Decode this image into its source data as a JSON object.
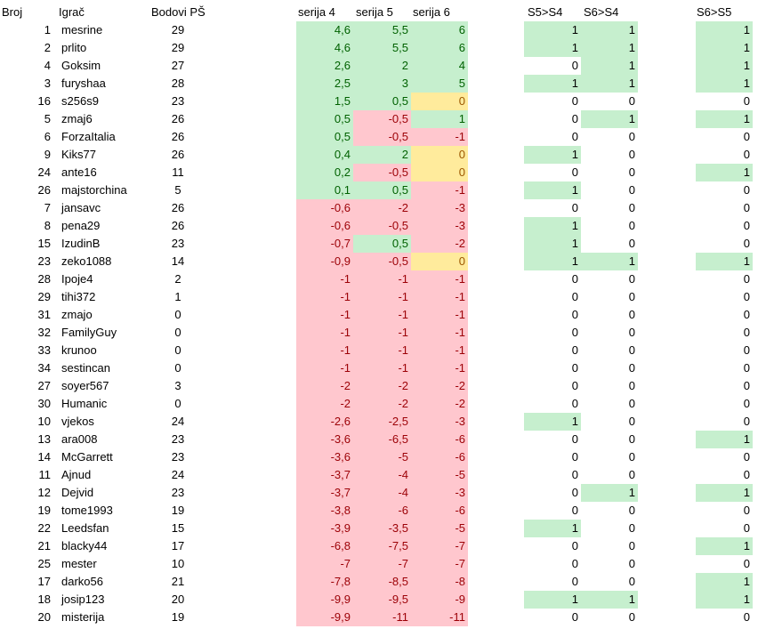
{
  "header": [
    "Broj",
    "Igrač",
    "Bodovi PŠ",
    "serija 4",
    "serija 5",
    "serija 6",
    "S5>S4",
    "S6>S4",
    "S6>S5"
  ],
  "rows": [
    [
      "1",
      "mesrine",
      "29",
      "4,6",
      "5,5",
      "6",
      "1",
      "1",
      "1"
    ],
    [
      "2",
      "prlito",
      "29",
      "4,6",
      "5,5",
      "6",
      "1",
      "1",
      "1"
    ],
    [
      "4",
      "Goksim",
      "27",
      "2,6",
      "2",
      "4",
      "0",
      "1",
      "1"
    ],
    [
      "3",
      "furyshaa",
      "28",
      "2,5",
      "3",
      "5",
      "1",
      "1",
      "1"
    ],
    [
      "16",
      "s256s9",
      "23",
      "1,5",
      "0,5",
      "0",
      "0",
      "0",
      "0"
    ],
    [
      "5",
      "zmaj6",
      "26",
      "0,5",
      "-0,5",
      "1",
      "0",
      "1",
      "1"
    ],
    [
      "6",
      "ForzaItalia",
      "26",
      "0,5",
      "-0,5",
      "-1",
      "0",
      "0",
      "0"
    ],
    [
      "9",
      "Kiks77",
      "26",
      "0,4",
      "2",
      "0",
      "1",
      "0",
      "0"
    ],
    [
      "24",
      "ante16",
      "11",
      "0,2",
      "-0,5",
      "0",
      "0",
      "0",
      "1"
    ],
    [
      "26",
      "majstorchina",
      "5",
      "0,1",
      "0,5",
      "-1",
      "1",
      "0",
      "0"
    ],
    [
      "7",
      "jansavc",
      "26",
      "-0,6",
      "-2",
      "-3",
      "0",
      "0",
      "0"
    ],
    [
      "8",
      "pena29",
      "26",
      "-0,6",
      "-0,5",
      "-3",
      "1",
      "0",
      "0"
    ],
    [
      "15",
      "IzudinB",
      "23",
      "-0,7",
      "0,5",
      "-2",
      "1",
      "0",
      "0"
    ],
    [
      "23",
      "zeko1088",
      "14",
      "-0,9",
      "-0,5",
      "0",
      "1",
      "1",
      "1"
    ],
    [
      "28",
      "Ipoje4",
      "2",
      "-1",
      "-1",
      "-1",
      "0",
      "0",
      "0"
    ],
    [
      "29",
      "tihi372",
      "1",
      "-1",
      "-1",
      "-1",
      "0",
      "0",
      "0"
    ],
    [
      "31",
      "zmajo",
      "0",
      "-1",
      "-1",
      "-1",
      "0",
      "0",
      "0"
    ],
    [
      "32",
      "FamilyGuy",
      "0",
      "-1",
      "-1",
      "-1",
      "0",
      "0",
      "0"
    ],
    [
      "33",
      "krunoo",
      "0",
      "-1",
      "-1",
      "-1",
      "0",
      "0",
      "0"
    ],
    [
      "34",
      "sestincan",
      "0",
      "-1",
      "-1",
      "-1",
      "0",
      "0",
      "0"
    ],
    [
      "27",
      "soyer567",
      "3",
      "-2",
      "-2",
      "-2",
      "0",
      "0",
      "0"
    ],
    [
      "30",
      "Humanic",
      "0",
      "-2",
      "-2",
      "-2",
      "0",
      "0",
      "0"
    ],
    [
      "10",
      "vjekos",
      "24",
      "-2,6",
      "-2,5",
      "-3",
      "1",
      "0",
      "0"
    ],
    [
      "13",
      "ara008",
      "23",
      "-3,6",
      "-6,5",
      "-6",
      "0",
      "0",
      "1"
    ],
    [
      "14",
      "McGarrett",
      "23",
      "-3,6",
      "-5",
      "-6",
      "0",
      "0",
      "0"
    ],
    [
      "11",
      "Ajnud",
      "24",
      "-3,7",
      "-4",
      "-5",
      "0",
      "0",
      "0"
    ],
    [
      "12",
      "Dejvid",
      "23",
      "-3,7",
      "-4",
      "-3",
      "0",
      "1",
      "1"
    ],
    [
      "19",
      "tome1993",
      "19",
      "-3,8",
      "-6",
      "-6",
      "0",
      "0",
      "0"
    ],
    [
      "22",
      "Leedsfan",
      "15",
      "-3,9",
      "-3,5",
      "-5",
      "1",
      "0",
      "0"
    ],
    [
      "21",
      "blacky44",
      "17",
      "-6,8",
      "-7,5",
      "-7",
      "0",
      "0",
      "1"
    ],
    [
      "25",
      "mester",
      "10",
      "-7",
      "-7",
      "-7",
      "0",
      "0",
      "0"
    ],
    [
      "17",
      "darko56",
      "21",
      "-7,8",
      "-8,5",
      "-8",
      "0",
      "0",
      "1"
    ],
    [
      "18",
      "josip123",
      "20",
      "-9,9",
      "-9,5",
      "-9",
      "1",
      "1",
      "1"
    ],
    [
      "20",
      "misterija",
      "19",
      "-9,9",
      "-11",
      "-11",
      "0",
      "0",
      "0"
    ]
  ]
}
